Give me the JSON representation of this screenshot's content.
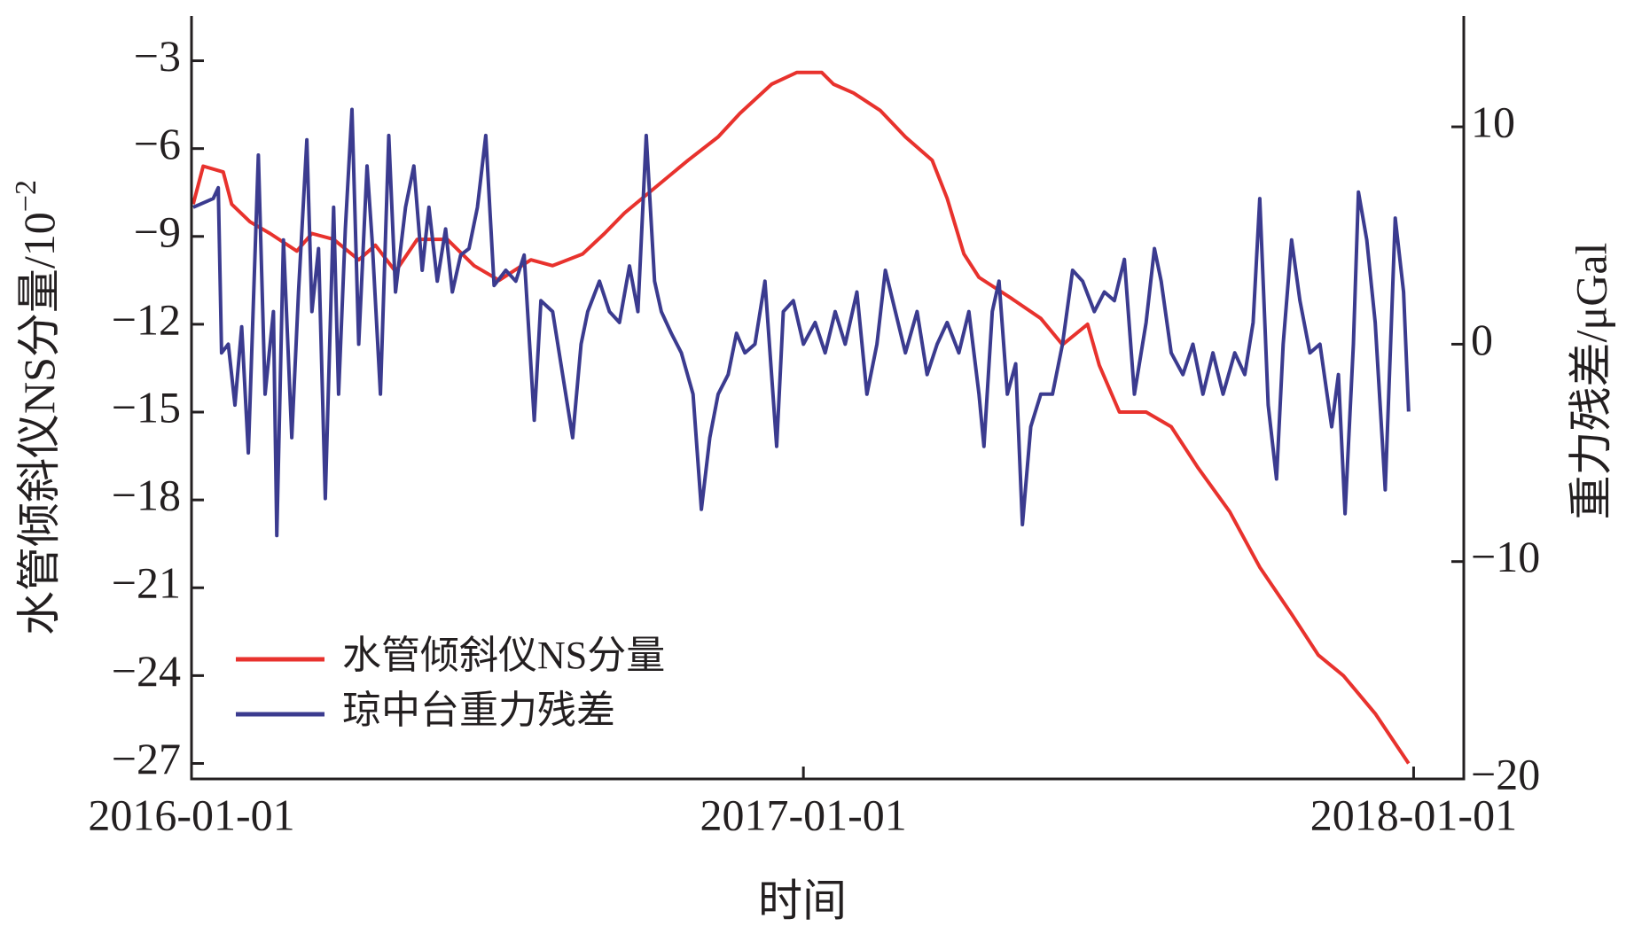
{
  "chart_data": {
    "type": "line",
    "xlabel": "时间",
    "ylabel": "水管倾斜仪NS分量/10",
    "ylabel_exponent": "−2",
    "y2label": "重力残差/μGal",
    "xlim": [
      "2016-01-01",
      "2018-01-31"
    ],
    "xticks": [
      "2016-01-01",
      "2017-01-01",
      "2018-01-01"
    ],
    "ylim": [
      -27.53,
      -1.47
    ],
    "yticks": [
      {
        "value": -3,
        "label": "−3"
      },
      {
        "value": -6,
        "label": "−6"
      },
      {
        "value": -9,
        "label": "−9"
      },
      {
        "value": -12,
        "label": "−12"
      },
      {
        "value": -15,
        "label": "−15"
      },
      {
        "value": -18,
        "label": "−18"
      },
      {
        "value": -21,
        "label": "−21"
      },
      {
        "value": -24,
        "label": "−24"
      },
      {
        "value": -27,
        "label": "−27"
      }
    ],
    "y2lim": [
      -20,
      15.1
    ],
    "y2ticks": [
      10,
      0,
      {
        "value": -10,
        "label": "−10"
      },
      {
        "value": -20,
        "label": "−20"
      }
    ],
    "legend": "lower left",
    "series": [
      {
        "name": "水管倾斜仪NS分量",
        "color": "#e8322d",
        "x": [
          "2016-01-02",
          "2016-01-08",
          "2016-01-20",
          "2016-01-25",
          "2016-02-05",
          "2016-02-17",
          "2016-03-04",
          "2016-03-13",
          "2016-03-26",
          "2016-04-10",
          "2016-04-20",
          "2016-05-02",
          "2016-05-15",
          "2016-06-02",
          "2016-06-18",
          "2016-07-03",
          "2016-07-22",
          "2016-08-04",
          "2016-08-22",
          "2016-09-04",
          "2016-09-16",
          "2016-10-05",
          "2016-10-24",
          "2016-11-11",
          "2016-11-24",
          "2016-12-13",
          "2016-12-28",
          "2017-01-12",
          "2017-01-19",
          "2017-01-31",
          "2017-02-16",
          "2017-03-03",
          "2017-03-19",
          "2017-03-28",
          "2017-04-07",
          "2017-04-16",
          "2017-05-05",
          "2017-05-23",
          "2017-06-05",
          "2017-06-20",
          "2017-06-27",
          "2017-07-09",
          "2017-07-25",
          "2017-08-09",
          "2017-08-25",
          "2017-09-13",
          "2017-10-01",
          "2017-10-20",
          "2017-11-05",
          "2017-11-20",
          "2017-12-09",
          "2017-12-29"
        ],
        "values": [
          -7.9,
          -6.6,
          -6.8,
          -7.9,
          -8.5,
          -8.9,
          -9.5,
          -8.9,
          -9.1,
          -9.8,
          -9.3,
          -10.2,
          -9.1,
          -9.1,
          -10.0,
          -10.5,
          -9.8,
          -10.0,
          -9.6,
          -8.9,
          -8.2,
          -7.3,
          -6.4,
          -5.6,
          -4.8,
          -3.8,
          -3.4,
          -3.4,
          -3.8,
          -4.1,
          -4.7,
          -5.6,
          -6.4,
          -7.7,
          -9.6,
          -10.4,
          -11.1,
          -11.8,
          -12.7,
          -12.0,
          -13.4,
          -15.0,
          -15.0,
          -15.5,
          -16.9,
          -18.4,
          -20.3,
          -21.9,
          -23.3,
          -24.0,
          -25.3,
          -27.0
        ]
      },
      {
        "name": "琼中台重力残差",
        "color": "#3b3b8f",
        "axis": "y2",
        "x": [
          "2016-01-02",
          "2016-01-14",
          "2016-01-17",
          "2016-01-19",
          "2016-01-23",
          "2016-01-27",
          "2016-01-31",
          "2016-02-04",
          "2016-02-10",
          "2016-02-14",
          "2016-02-19",
          "2016-02-21",
          "2016-02-25",
          "2016-03-01",
          "2016-03-05",
          "2016-03-10",
          "2016-03-13",
          "2016-03-17",
          "2016-03-21",
          "2016-03-26",
          "2016-03-29",
          "2016-04-02",
          "2016-04-06",
          "2016-04-10",
          "2016-04-15",
          "2016-04-18",
          "2016-04-23",
          "2016-04-28",
          "2016-05-02",
          "2016-05-08",
          "2016-05-13",
          "2016-05-18",
          "2016-05-22",
          "2016-05-27",
          "2016-06-01",
          "2016-06-05",
          "2016-06-10",
          "2016-06-15",
          "2016-06-20",
          "2016-06-25",
          "2016-06-30",
          "2016-07-07",
          "2016-07-13",
          "2016-07-18",
          "2016-07-24",
          "2016-07-28",
          "2016-08-04",
          "2016-08-10",
          "2016-08-16",
          "2016-08-21",
          "2016-08-25",
          "2016-09-01",
          "2016-09-07",
          "2016-09-13",
          "2016-09-19",
          "2016-09-24",
          "2016-09-29",
          "2016-10-04",
          "2016-10-08",
          "2016-10-14",
          "2016-10-20",
          "2016-10-27",
          "2016-11-01",
          "2016-11-06",
          "2016-11-11",
          "2016-11-17",
          "2016-11-22",
          "2016-11-27",
          "2016-12-03",
          "2016-12-09",
          "2016-12-16",
          "2016-12-20",
          "2016-12-26",
          "2017-01-01",
          "2017-01-08",
          "2017-01-14",
          "2017-01-20",
          "2017-01-26",
          "2017-02-02",
          "2017-02-08",
          "2017-02-14",
          "2017-02-19",
          "2017-02-25",
          "2017-03-03",
          "2017-03-10",
          "2017-03-16",
          "2017-03-22",
          "2017-03-28",
          "2017-04-04",
          "2017-04-10",
          "2017-04-16",
          "2017-04-19",
          "2017-04-24",
          "2017-04-28",
          "2017-05-03",
          "2017-05-08",
          "2017-05-12",
          "2017-05-17",
          "2017-05-23",
          "2017-05-30",
          "2017-06-05",
          "2017-06-11",
          "2017-06-17",
          "2017-06-24",
          "2017-06-30",
          "2017-07-06",
          "2017-07-12",
          "2017-07-18",
          "2017-07-25",
          "2017-07-30",
          "2017-08-03",
          "2017-08-09",
          "2017-08-16",
          "2017-08-22",
          "2017-08-28",
          "2017-09-03",
          "2017-09-09",
          "2017-09-16",
          "2017-09-22",
          "2017-09-27",
          "2017-10-01",
          "2017-10-06",
          "2017-10-11",
          "2017-10-15",
          "2017-10-20",
          "2017-10-25",
          "2017-10-31",
          "2017-11-06",
          "2017-11-13",
          "2017-11-17",
          "2017-11-21",
          "2017-11-26",
          "2017-11-29",
          "2017-12-04",
          "2017-12-09",
          "2017-12-15",
          "2017-12-21",
          "2017-12-26",
          "2017-12-29"
        ],
        "values": [
          6.3,
          6.7,
          7.2,
          -0.4,
          0,
          -2.8,
          0.8,
          -5.0,
          8.7,
          -2.3,
          1.5,
          -8.8,
          4.8,
          -4.3,
          2.4,
          9.4,
          1.5,
          4.4,
          -7.1,
          6.3,
          -2.3,
          5.3,
          10.8,
          0,
          8.2,
          4.8,
          -2.3,
          9.6,
          2.4,
          6.3,
          8.2,
          3.4,
          6.3,
          2.9,
          5.3,
          2.4,
          4.1,
          4.4,
          6.3,
          9.6,
          2.7,
          3.4,
          2.9,
          4.1,
          -3.5,
          2.0,
          1.5,
          -1.4,
          -4.3,
          0,
          1.5,
          2.9,
          1.5,
          1.0,
          3.6,
          1.5,
          9.6,
          2.9,
          1.5,
          0.5,
          -0.4,
          -2.3,
          -7.6,
          -4.3,
          -2.3,
          -1.4,
          0.5,
          -0.4,
          0,
          2.9,
          -4.7,
          1.5,
          2.0,
          0,
          1.0,
          -0.4,
          1.5,
          0,
          2.4,
          -2.3,
          0,
          3.4,
          1.5,
          -0.4,
          1.5,
          -1.4,
          0,
          1.0,
          -0.4,
          1.5,
          -2.3,
          -4.7,
          1.5,
          2.9,
          -2.3,
          -0.9,
          -8.3,
          -3.8,
          -2.3,
          -2.3,
          0,
          3.4,
          2.9,
          1.5,
          2.4,
          2.0,
          3.9,
          -2.3,
          1.0,
          4.4,
          2.9,
          -0.4,
          -1.4,
          0,
          -2.3,
          -0.4,
          -2.3,
          -0.4,
          -1.4,
          1.0,
          6.7,
          -2.8,
          -6.2,
          0,
          4.8,
          2.0,
          -0.4,
          0,
          -3.8,
          -1.4,
          -7.8,
          0,
          7.0,
          4.8,
          1.0,
          -6.7,
          5.8,
          2.4,
          -3.1
        ]
      }
    ]
  }
}
